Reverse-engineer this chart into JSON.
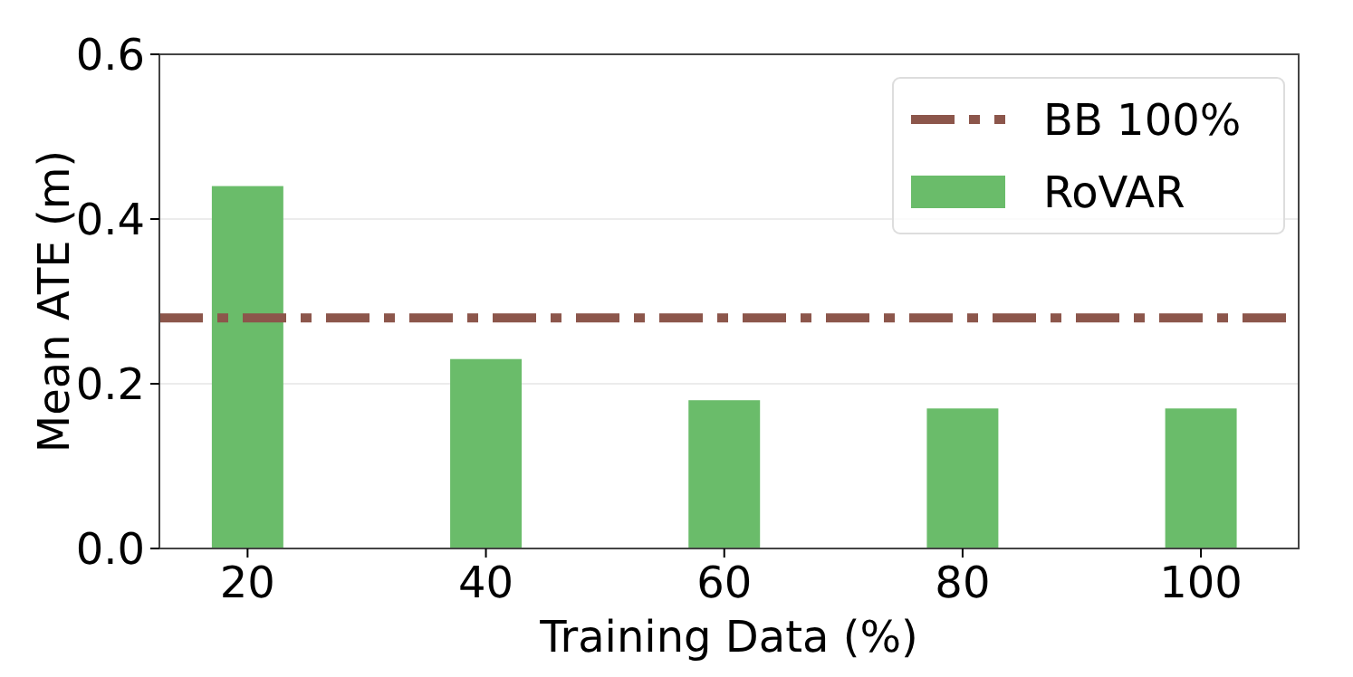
{
  "chart_data": {
    "type": "bar",
    "xlabel": "Training Data (%)",
    "ylabel": "Mean ATE (m)",
    "categories": [
      "20",
      "40",
      "60",
      "80",
      "100"
    ],
    "series": [
      {
        "name": "RoVAR",
        "color": "#6abc6a",
        "values": [
          0.44,
          0.23,
          0.18,
          0.17,
          0.17
        ]
      }
    ],
    "ylim": [
      0,
      0.6
    ],
    "yticks": [
      {
        "value": 0,
        "label": "0.0"
      },
      {
        "value": 0.2,
        "label": "0.2"
      },
      {
        "value": 0.4,
        "label": "0.4"
      },
      {
        "value": 0.6,
        "label": "0.6"
      }
    ],
    "ref_lines": [
      {
        "axis": "y",
        "value": 0.28,
        "label": "BB 100%",
        "color": "#8c564b",
        "line_style": "dashed"
      }
    ],
    "grid": "y",
    "legend": "top right"
  }
}
